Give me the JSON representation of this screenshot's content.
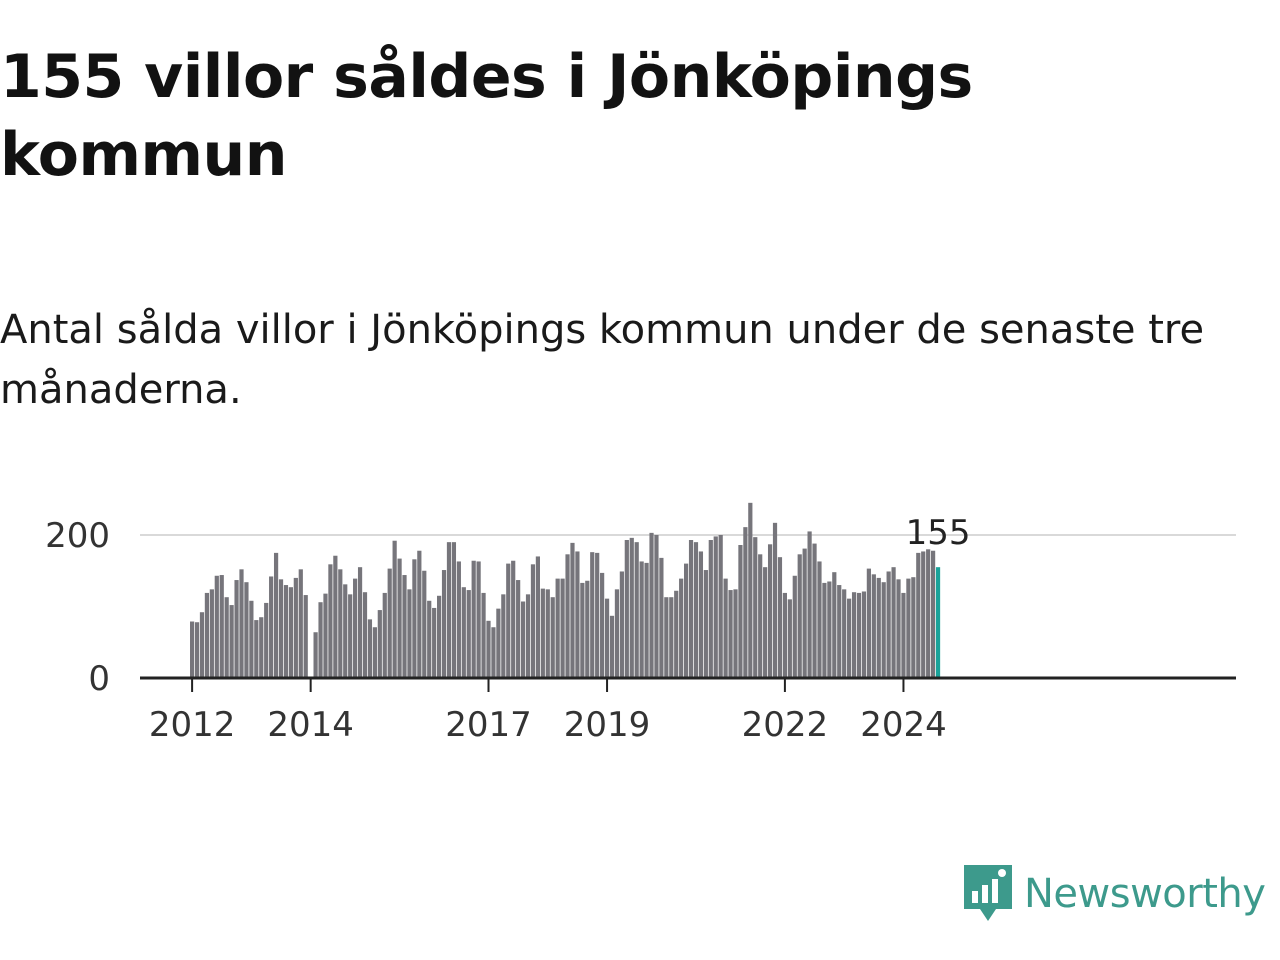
{
  "header": {
    "title": "155 villor såldes i Jönköpings kommun",
    "subtitle": "Antal sålda villor i Jönköpings kommun under de senaste tre månaderna."
  },
  "brand": {
    "name": "Newsworthy",
    "color": "#3d9a8c",
    "icon": "newsworthy-logo-icon"
  },
  "colors": {
    "bar": "#76757b",
    "highlight": "#1aa39a",
    "axis": "#222222",
    "grid": "#d9d9d9"
  },
  "chart_data": {
    "type": "bar",
    "title": "155 villor såldes i Jönköpings kommun",
    "subtitle": "Antal sålda villor i Jönköpings kommun under de senaste tre månaderna.",
    "xlabel": "",
    "ylabel": "",
    "x_start": "2012-01",
    "x_end": "2024-09",
    "ylim": [
      0,
      250
    ],
    "yticks": [
      0,
      200
    ],
    "xticks": [
      "2012",
      "2014",
      "2017",
      "2019",
      "2022",
      "2024"
    ],
    "grid": true,
    "highlight_label": "155",
    "values": [
      79,
      78,
      92,
      119,
      124,
      143,
      144,
      113,
      102,
      137,
      152,
      134,
      108,
      81,
      85,
      105,
      142,
      175,
      138,
      130,
      127,
      140,
      152,
      116,
      null,
      64,
      106,
      118,
      159,
      171,
      152,
      131,
      117,
      139,
      155,
      120,
      82,
      71,
      95,
      119,
      153,
      192,
      167,
      144,
      124,
      166,
      178,
      150,
      108,
      98,
      115,
      151,
      190,
      190,
      163,
      127,
      123,
      164,
      163,
      119,
      80,
      71,
      97,
      117,
      160,
      164,
      137,
      107,
      117,
      159,
      170,
      125,
      124,
      113,
      139,
      139,
      173,
      189,
      177,
      133,
      136,
      176,
      175,
      147,
      111,
      87,
      124,
      149,
      193,
      196,
      190,
      163,
      161,
      203,
      200,
      168,
      113,
      113,
      122,
      139,
      160,
      193,
      190,
      177,
      151,
      193,
      198,
      200,
      139,
      123,
      124,
      186,
      211,
      245,
      197,
      173,
      155,
      187,
      217,
      169,
      119,
      110,
      143,
      173,
      181,
      205,
      188,
      163,
      133,
      135,
      148,
      130,
      124,
      111,
      120,
      119,
      121,
      153,
      145,
      140,
      134,
      149,
      155,
      138,
      119,
      139,
      141,
      175,
      177,
      180,
      178,
      155
    ]
  }
}
